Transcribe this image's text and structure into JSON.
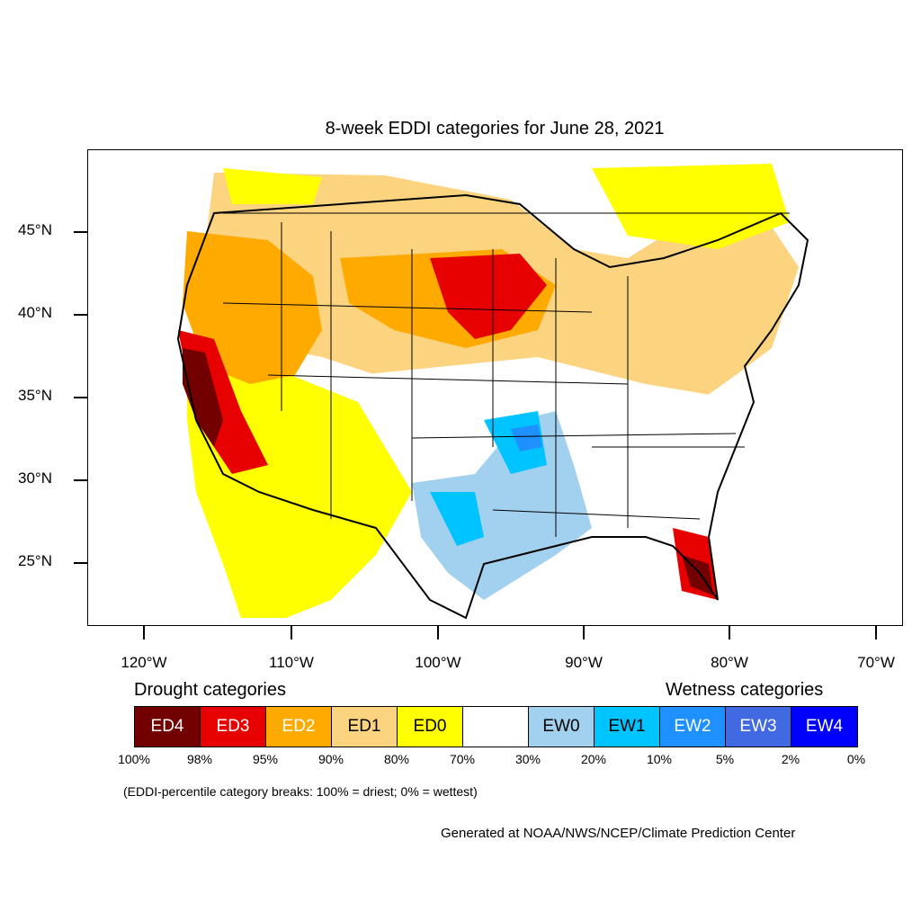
{
  "title": "8-week EDDI categories for June 28, 2021",
  "map": {
    "lat_labels": [
      "45°N",
      "40°N",
      "35°N",
      "30°N",
      "25°N"
    ],
    "lon_labels": [
      "120°W",
      "110°W",
      "100°W",
      "90°W",
      "80°W",
      "70°W"
    ]
  },
  "legend": {
    "drought_heading": "Drought categories",
    "wetness_heading": "Wetness categories",
    "categories": [
      {
        "label": "ED4",
        "color": "#730000",
        "text_color": "#ffffff"
      },
      {
        "label": "ED3",
        "color": "#e60000",
        "text_color": "#ffffff"
      },
      {
        "label": "ED2",
        "color": "#ffaa00",
        "text_color": "#ffffff"
      },
      {
        "label": "ED1",
        "color": "#fcd37f",
        "text_color": "#000000"
      },
      {
        "label": "ED0",
        "color": "#ffff00",
        "text_color": "#000000"
      },
      {
        "label": "",
        "color": "#ffffff",
        "text_color": "#000000"
      },
      {
        "label": "EW0",
        "color": "#a1d1ee",
        "text_color": "#000000"
      },
      {
        "label": "EW1",
        "color": "#00c4ff",
        "text_color": "#000000"
      },
      {
        "label": "EW2",
        "color": "#1e90ff",
        "text_color": "#ffffff"
      },
      {
        "label": "EW3",
        "color": "#4169e1",
        "text_color": "#ffffff"
      },
      {
        "label": "EW4",
        "color": "#0000ff",
        "text_color": "#ffffff"
      }
    ],
    "percentiles": [
      "100%",
      "98%",
      "95%",
      "90%",
      "80%",
      "70%",
      "30%",
      "20%",
      "10%",
      "5%",
      "2%",
      "0%"
    ]
  },
  "note": "(EDDI-percentile category breaks: 100% = driest; 0% = wettest)",
  "credit": "Generated at NOAA/NWS/NCEP/Climate Prediction Center"
}
